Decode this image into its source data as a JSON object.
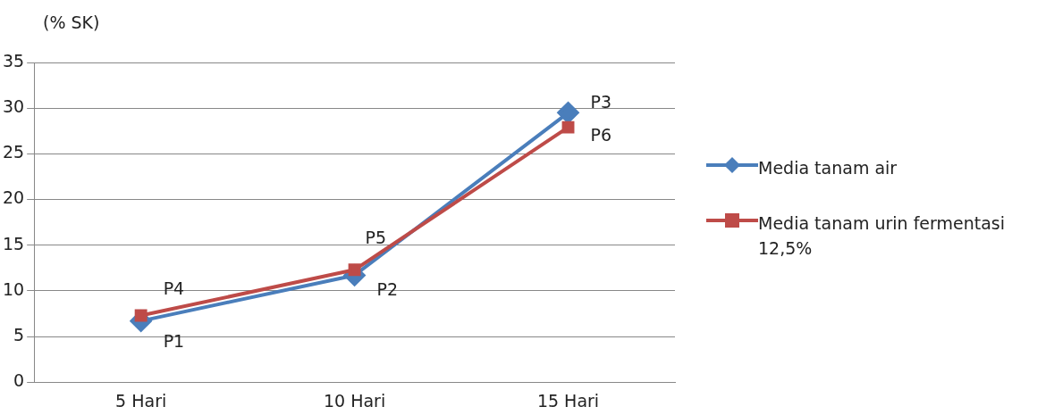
{
  "chart_data": {
    "type": "line",
    "ylabel": "(% SK)",
    "categories": [
      "5 Hari",
      "10 Hari",
      "15 Hari"
    ],
    "series": [
      {
        "name": "Media tanam air",
        "color": "#4a7ebb",
        "marker": "diamond",
        "values": [
          6.7,
          11.7,
          29.5
        ]
      },
      {
        "name": "Media tanam urin fermentasi 12,5%",
        "color": "#be4b48",
        "marker": "square",
        "values": [
          7.3,
          12.3,
          27.9
        ]
      }
    ],
    "ylim": [
      0,
      35
    ],
    "yticks": [
      0,
      5,
      10,
      15,
      20,
      25,
      30,
      35
    ],
    "grid": "y",
    "legend": "right",
    "annotations": [
      {
        "text": "P1",
        "x": "5 Hari",
        "y": 6.7
      },
      {
        "text": "P2",
        "x": "10 Hari",
        "y": 11.7
      },
      {
        "text": "P3",
        "x": "15 Hari",
        "y": 29.5
      },
      {
        "text": "P4",
        "x": "5 Hari",
        "y": 7.3
      },
      {
        "text": "P5",
        "x": "10 Hari",
        "y": 12.3
      },
      {
        "text": "P6",
        "x": "15 Hari",
        "y": 27.9
      }
    ]
  }
}
